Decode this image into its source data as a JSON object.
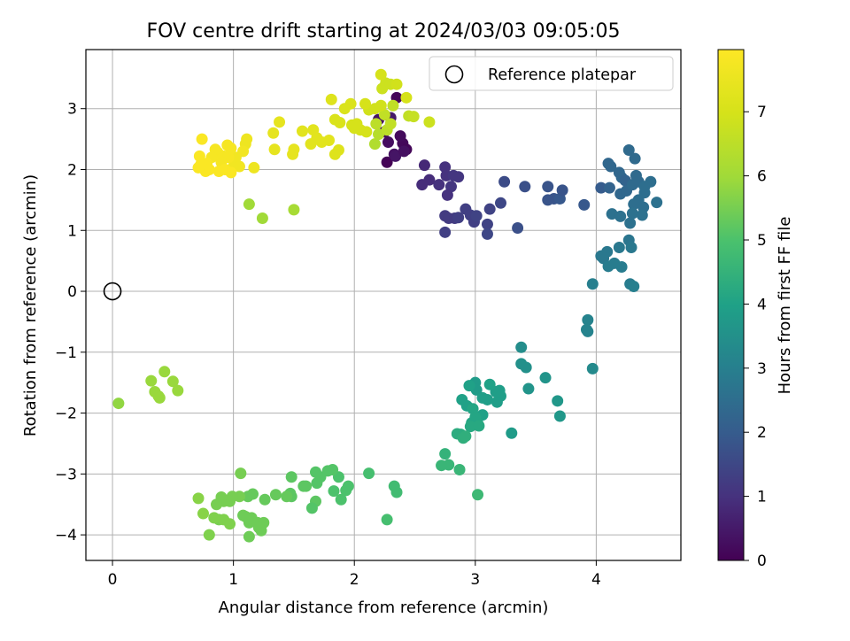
{
  "chart_data": {
    "type": "scatter",
    "title": "FOV centre drift starting at 2024/03/03 09:05:05",
    "xlabel": "Angular distance from reference (arcmin)",
    "ylabel": "Rotation from reference (arcmin)",
    "xlim": [
      -0.22,
      4.7
    ],
    "ylim": [
      -4.42,
      3.97
    ],
    "xticks": [
      0,
      1,
      2,
      3,
      4
    ],
    "xtick_labels": [
      "0",
      "1",
      "2",
      "3",
      "4"
    ],
    "yticks": [
      -4,
      -3,
      -2,
      -1,
      0,
      1,
      2,
      3
    ],
    "ytick_labels": [
      "−4",
      "−3",
      "−2",
      "−1",
      "0",
      "1",
      "2",
      "3"
    ],
    "grid": true,
    "legend": {
      "position": "top-right",
      "entries": [
        "Reference platepar"
      ]
    },
    "reference_point": {
      "name": "Reference platepar",
      "x": 0,
      "y": 0,
      "marker": "open-circle"
    },
    "colorbar": {
      "label": "Hours from first FF file",
      "colormap": "viridis",
      "range": [
        0,
        7.97
      ],
      "ticks": [
        0,
        1,
        2,
        3,
        4,
        5,
        6,
        7
      ],
      "tick_labels": [
        "0",
        "1",
        "2",
        "3",
        "4",
        "5",
        "6",
        "7"
      ]
    },
    "point_fields": [
      "x (arcmin)",
      "y (arcmin)",
      "hours from first FF file"
    ],
    "points": [
      [
        2.35,
        3.18,
        0.1
      ],
      [
        2.4,
        2.43,
        0.15
      ],
      [
        2.38,
        2.55,
        0.2
      ],
      [
        2.43,
        2.33,
        0.1
      ],
      [
        2.33,
        2.25,
        0.3
      ],
      [
        2.28,
        2.45,
        0.25
      ],
      [
        2.25,
        2.62,
        0.2
      ],
      [
        2.2,
        2.82,
        0.35
      ],
      [
        2.27,
        2.12,
        0.05
      ],
      [
        2.34,
        2.22,
        0.4
      ],
      [
        2.41,
        2.3,
        0.3
      ],
      [
        2.3,
        2.85,
        0.5
      ],
      [
        2.58,
        2.07,
        0.8
      ],
      [
        2.62,
        1.83,
        0.9
      ],
      [
        2.56,
        1.75,
        0.9
      ],
      [
        2.7,
        1.75,
        1.0
      ],
      [
        2.75,
        2.04,
        1.0
      ],
      [
        2.76,
        1.9,
        1.0
      ],
      [
        2.8,
        1.72,
        1.1
      ],
      [
        2.77,
        1.58,
        1.0
      ],
      [
        2.82,
        1.9,
        1.1
      ],
      [
        2.86,
        1.88,
        1.1
      ],
      [
        2.75,
        1.24,
        1.2
      ],
      [
        2.78,
        1.2,
        1.2
      ],
      [
        2.83,
        1.2,
        1.2
      ],
      [
        2.86,
        1.21,
        1.3
      ],
      [
        2.92,
        1.35,
        1.3
      ],
      [
        2.96,
        1.25,
        1.3
      ],
      [
        2.99,
        1.14,
        1.3
      ],
      [
        3.01,
        1.24,
        1.4
      ],
      [
        2.75,
        0.97,
        1.3
      ],
      [
        3.1,
        1.1,
        1.4
      ],
      [
        3.12,
        1.35,
        1.4
      ],
      [
        3.1,
        0.94,
        1.5
      ],
      [
        3.21,
        1.45,
        1.5
      ],
      [
        3.24,
        1.8,
        1.6
      ],
      [
        3.35,
        1.04,
        1.7
      ],
      [
        3.41,
        1.72,
        1.7
      ],
      [
        3.6,
        1.72,
        1.8
      ],
      [
        3.65,
        1.52,
        1.8
      ],
      [
        3.6,
        1.5,
        1.8
      ],
      [
        3.7,
        1.52,
        1.9
      ],
      [
        3.72,
        1.66,
        1.8
      ],
      [
        3.9,
        1.42,
        1.9
      ],
      [
        4.04,
        1.7,
        2.0
      ],
      [
        4.1,
        2.1,
        2.3
      ],
      [
        4.12,
        2.05,
        2.3
      ],
      [
        4.11,
        1.7,
        2.2
      ],
      [
        4.19,
        1.95,
        2.3
      ],
      [
        4.21,
        1.87,
        2.3
      ],
      [
        4.24,
        1.82,
        2.2
      ],
      [
        4.27,
        2.32,
        2.4
      ],
      [
        4.32,
        2.18,
        2.4
      ],
      [
        4.2,
        1.6,
        2.3
      ],
      [
        4.25,
        1.65,
        2.3
      ],
      [
        4.3,
        1.75,
        2.4
      ],
      [
        4.33,
        1.9,
        2.4
      ],
      [
        4.35,
        1.8,
        2.4
      ],
      [
        4.4,
        1.72,
        2.5
      ],
      [
        4.45,
        1.8,
        2.5
      ],
      [
        4.31,
        1.43,
        2.5
      ],
      [
        4.35,
        1.5,
        2.5
      ],
      [
        4.39,
        1.38,
        2.5
      ],
      [
        4.4,
        1.62,
        2.5
      ],
      [
        4.5,
        1.46,
        2.6
      ],
      [
        4.13,
        1.27,
        2.6
      ],
      [
        4.2,
        1.23,
        2.6
      ],
      [
        4.28,
        1.12,
        2.6
      ],
      [
        4.3,
        1.28,
        2.6
      ],
      [
        4.38,
        1.25,
        2.6
      ],
      [
        4.27,
        0.84,
        2.7
      ],
      [
        4.29,
        0.72,
        2.8
      ],
      [
        4.19,
        0.72,
        2.8
      ],
      [
        4.09,
        0.65,
        2.8
      ],
      [
        4.04,
        0.58,
        2.8
      ],
      [
        4.06,
        0.54,
        2.8
      ],
      [
        4.1,
        0.41,
        2.9
      ],
      [
        4.15,
        0.46,
        2.9
      ],
      [
        4.21,
        0.4,
        2.9
      ],
      [
        4.28,
        0.12,
        2.9
      ],
      [
        4.31,
        0.08,
        3.0
      ],
      [
        3.97,
        0.12,
        3.0
      ],
      [
        3.93,
        -0.47,
        3.1
      ],
      [
        3.92,
        -0.63,
        3.1
      ],
      [
        3.93,
        -0.66,
        3.1
      ],
      [
        3.97,
        -1.27,
        3.3
      ],
      [
        3.38,
        -0.92,
        3.4
      ],
      [
        3.38,
        -1.19,
        3.5
      ],
      [
        3.42,
        -1.25,
        3.5
      ],
      [
        3.44,
        -1.6,
        3.6
      ],
      [
        3.58,
        -1.42,
        3.6
      ],
      [
        3.68,
        -1.8,
        3.7
      ],
      [
        3.7,
        -2.05,
        3.7
      ],
      [
        3.3,
        -2.33,
        3.8
      ],
      [
        3.0,
        -1.5,
        3.8
      ],
      [
        2.97,
        -1.55,
        3.8
      ],
      [
        3.01,
        -1.62,
        3.8
      ],
      [
        3.06,
        -1.75,
        3.9
      ],
      [
        3.1,
        -1.78,
        3.9
      ],
      [
        3.17,
        -1.65,
        3.9
      ],
      [
        3.2,
        -1.63,
        3.9
      ],
      [
        3.21,
        -1.72,
        3.9
      ],
      [
        3.18,
        -1.82,
        3.9
      ],
      [
        3.12,
        -1.53,
        4.0
      ],
      [
        2.95,
        -1.55,
        4.0
      ],
      [
        2.89,
        -1.78,
        4.0
      ],
      [
        2.93,
        -1.88,
        4.0
      ],
      [
        2.98,
        -1.93,
        4.1
      ],
      [
        3.06,
        -2.03,
        4.0
      ],
      [
        3.02,
        -2.17,
        4.1
      ],
      [
        2.97,
        -2.16,
        4.1
      ],
      [
        3.0,
        -2.07,
        4.1
      ],
      [
        2.96,
        -2.22,
        4.2
      ],
      [
        3.03,
        -2.21,
        4.2
      ],
      [
        2.88,
        -2.35,
        4.3
      ],
      [
        2.85,
        -2.34,
        4.3
      ],
      [
        2.9,
        -2.41,
        4.4
      ],
      [
        2.92,
        -2.38,
        4.4
      ],
      [
        2.75,
        -2.67,
        4.5
      ],
      [
        2.78,
        -2.85,
        4.6
      ],
      [
        2.72,
        -2.86,
        4.6
      ],
      [
        2.87,
        -2.93,
        4.6
      ],
      [
        3.02,
        -3.34,
        4.7
      ],
      [
        2.33,
        -3.2,
        4.8
      ],
      [
        2.35,
        -3.3,
        4.8
      ],
      [
        2.27,
        -3.75,
        4.9
      ],
      [
        2.12,
        -2.99,
        4.9
      ],
      [
        1.95,
        -3.2,
        5.0
      ],
      [
        1.93,
        -3.27,
        5.0
      ],
      [
        1.89,
        -3.42,
        5.0
      ],
      [
        1.87,
        -3.05,
        5.0
      ],
      [
        1.82,
        -2.93,
        5.1
      ],
      [
        1.83,
        -3.28,
        5.0
      ],
      [
        1.78,
        -2.95,
        5.1
      ],
      [
        1.72,
        -3.05,
        5.1
      ],
      [
        1.68,
        -2.97,
        5.1
      ],
      [
        1.69,
        -3.15,
        5.1
      ],
      [
        1.68,
        -3.45,
        5.2
      ],
      [
        1.65,
        -3.56,
        5.1
      ],
      [
        1.58,
        -3.2,
        5.2
      ],
      [
        1.6,
        -3.2,
        5.2
      ],
      [
        1.48,
        -3.05,
        5.2
      ],
      [
        1.47,
        -3.32,
        5.2
      ],
      [
        1.48,
        -3.37,
        5.2
      ],
      [
        1.44,
        -3.37,
        5.3
      ],
      [
        1.35,
        -3.34,
        5.3
      ],
      [
        1.26,
        -3.42,
        5.3
      ],
      [
        1.16,
        -3.33,
        5.3
      ],
      [
        1.12,
        -3.37,
        5.3
      ],
      [
        1.1,
        -3.7,
        5.4
      ],
      [
        1.15,
        -3.72,
        5.4
      ],
      [
        1.13,
        -3.8,
        5.4
      ],
      [
        1.2,
        -3.8,
        5.4
      ],
      [
        1.25,
        -3.8,
        5.4
      ],
      [
        1.21,
        -3.88,
        5.4
      ],
      [
        1.23,
        -3.93,
        5.4
      ],
      [
        1.13,
        -4.03,
        5.4
      ],
      [
        1.08,
        -3.68,
        5.4
      ],
      [
        1.05,
        -3.37,
        5.5
      ],
      [
        1.06,
        -2.99,
        5.5
      ],
      [
        0.99,
        -3.37,
        5.5
      ],
      [
        0.97,
        -3.45,
        5.5
      ],
      [
        0.92,
        -3.45,
        5.5
      ],
      [
        0.9,
        -3.38,
        5.5
      ],
      [
        0.86,
        -3.5,
        5.5
      ],
      [
        0.88,
        -3.75,
        5.5
      ],
      [
        0.92,
        -3.75,
        5.6
      ],
      [
        0.84,
        -3.72,
        5.6
      ],
      [
        0.97,
        -3.82,
        5.6
      ],
      [
        0.8,
        -4.0,
        5.6
      ],
      [
        0.75,
        -3.65,
        5.7
      ],
      [
        0.71,
        -3.4,
        5.7
      ],
      [
        0.05,
        -1.84,
        5.8
      ],
      [
        0.32,
        -1.47,
        5.9
      ],
      [
        0.35,
        -1.65,
        5.9
      ],
      [
        0.38,
        -1.72,
        5.9
      ],
      [
        0.39,
        -1.75,
        5.9
      ],
      [
        0.43,
        -1.32,
        5.9
      ],
      [
        0.5,
        -1.48,
        5.9
      ],
      [
        0.54,
        -1.63,
        5.9
      ],
      [
        1.13,
        1.43,
        6.0
      ],
      [
        1.24,
        1.2,
        6.0
      ],
      [
        1.5,
        1.34,
        6.1
      ],
      [
        2.17,
        2.42,
        6.3
      ],
      [
        2.2,
        2.58,
        6.4
      ],
      [
        2.27,
        2.65,
        6.5
      ],
      [
        2.18,
        2.75,
        6.5
      ],
      [
        2.3,
        2.75,
        6.6
      ],
      [
        2.25,
        2.9,
        6.6
      ],
      [
        2.32,
        3.05,
        6.6
      ],
      [
        2.45,
        2.88,
        6.6
      ],
      [
        2.49,
        2.87,
        6.7
      ],
      [
        2.62,
        2.78,
        6.8
      ],
      [
        2.23,
        3.33,
        6.8
      ],
      [
        2.26,
        3.42,
        6.8
      ],
      [
        2.3,
        3.4,
        6.8
      ],
      [
        2.35,
        3.4,
        6.9
      ],
      [
        2.22,
        3.56,
        7.0
      ],
      [
        2.43,
        3.18,
        7.0
      ],
      [
        2.22,
        3.05,
        6.9
      ],
      [
        2.17,
        3.0,
        6.9
      ],
      [
        2.12,
        2.98,
        6.9
      ],
      [
        2.09,
        3.08,
        7.0
      ],
      [
        2.0,
        2.68,
        7.0
      ],
      [
        2.05,
        2.65,
        7.0
      ],
      [
        2.1,
        2.62,
        7.0
      ],
      [
        2.02,
        2.75,
        7.0
      ],
      [
        1.98,
        2.73,
        7.0
      ],
      [
        1.97,
        3.08,
        7.1
      ],
      [
        1.92,
        3.0,
        7.1
      ],
      [
        1.84,
        2.82,
        7.1
      ],
      [
        1.88,
        2.77,
        7.1
      ],
      [
        1.87,
        2.32,
        7.2
      ],
      [
        1.84,
        2.25,
        7.2
      ],
      [
        1.81,
        3.15,
        7.2
      ],
      [
        1.79,
        2.48,
        7.3
      ],
      [
        1.73,
        2.45,
        7.3
      ],
      [
        1.69,
        2.52,
        7.3
      ],
      [
        1.64,
        2.42,
        7.3
      ],
      [
        1.66,
        2.65,
        7.3
      ],
      [
        1.57,
        2.63,
        7.3
      ],
      [
        1.5,
        2.33,
        7.4
      ],
      [
        1.49,
        2.25,
        7.4
      ],
      [
        1.38,
        2.78,
        7.4
      ],
      [
        1.34,
        2.33,
        7.4
      ],
      [
        1.33,
        2.6,
        7.4
      ],
      [
        1.17,
        2.03,
        7.6
      ],
      [
        1.11,
        2.5,
        7.6
      ],
      [
        1.1,
        2.42,
        7.6
      ],
      [
        1.08,
        2.3,
        7.7
      ],
      [
        1.0,
        2.05,
        7.7
      ],
      [
        1.02,
        2.2,
        7.7
      ],
      [
        1.05,
        2.05,
        7.7
      ],
      [
        0.98,
        2.35,
        7.8
      ],
      [
        0.95,
        2.4,
        7.8
      ],
      [
        0.96,
        2.2,
        7.8
      ],
      [
        0.92,
        2.22,
        7.8
      ],
      [
        0.9,
        2.12,
        7.8
      ],
      [
        0.87,
        2.28,
        7.8
      ],
      [
        0.85,
        2.33,
        7.8
      ],
      [
        0.82,
        2.2,
        7.8
      ],
      [
        0.78,
        2.1,
        7.9
      ],
      [
        0.8,
        2.0,
        7.9
      ],
      [
        0.77,
        1.97,
        7.9
      ],
      [
        0.72,
        2.22,
        7.9
      ],
      [
        0.74,
        2.5,
        7.9
      ],
      [
        0.71,
        2.03,
        7.9
      ],
      [
        0.73,
        2.08,
        7.9
      ],
      [
        0.88,
        1.97,
        7.9
      ],
      [
        0.93,
        2.0,
        7.9
      ],
      [
        0.98,
        1.95,
        7.9
      ]
    ]
  }
}
